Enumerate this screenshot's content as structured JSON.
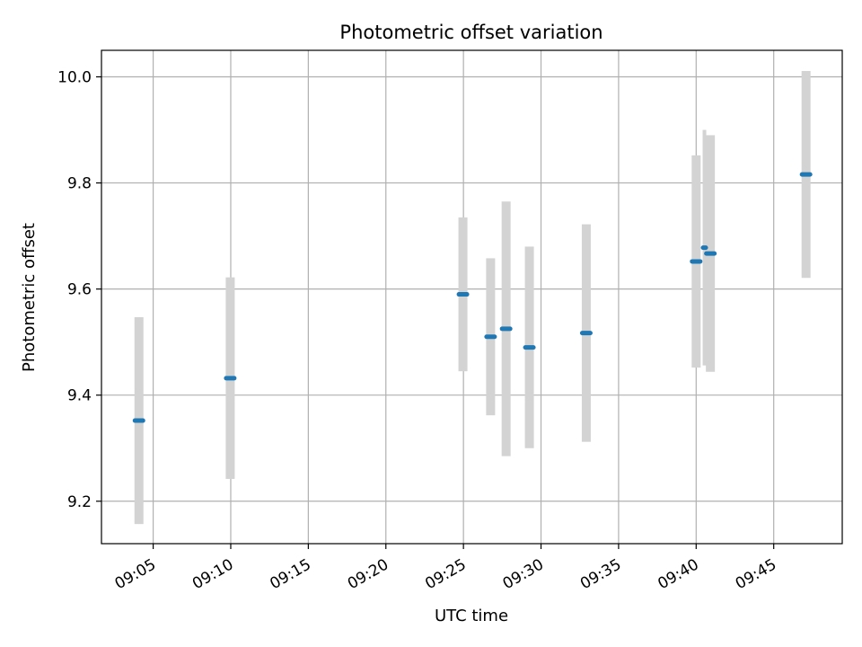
{
  "chart_data": {
    "type": "scatter",
    "title": "Photometric offset variation",
    "xlabel": "UTC time",
    "ylabel": "Photometric offset",
    "grid": true,
    "xlim": [
      "09:01:40",
      "09:49:25"
    ],
    "ylim": [
      9.12,
      10.05
    ],
    "x_ticks": [
      "09:05",
      "09:10",
      "09:15",
      "09:20",
      "09:25",
      "09:30",
      "09:35",
      "09:40",
      "09:45"
    ],
    "y_ticks": [
      9.2,
      9.4,
      9.6,
      9.8,
      10.0
    ],
    "y_tick_labels": [
      "9.2",
      "9.4",
      "9.6",
      "9.8",
      "10.0"
    ],
    "marker_color": "#1f77b4",
    "errorbar_color": "#d3d3d3",
    "points": [
      {
        "x": "09:04:05",
        "y": 9.352,
        "yerr": 0.195
      },
      {
        "x": "09:09:58",
        "y": 9.432,
        "yerr": 0.19
      },
      {
        "x": "09:24:58",
        "y": 9.59,
        "yerr": 0.145
      },
      {
        "x": "09:26:45",
        "y": 9.51,
        "yerr": 0.148
      },
      {
        "x": "09:27:45",
        "y": 9.525,
        "yerr": 0.24
      },
      {
        "x": "09:29:15",
        "y": 9.49,
        "yerr": 0.19
      },
      {
        "x": "09:32:55",
        "y": 9.517,
        "yerr": 0.205
      },
      {
        "x": "09:40:00",
        "y": 9.652,
        "yerr": 0.2
      },
      {
        "x": "09:40:32",
        "y": 9.678,
        "yerr": 0.222
      },
      {
        "x": "09:40:55",
        "y": 9.667,
        "yerr": 0.223
      },
      {
        "x": "09:47:05",
        "y": 9.816,
        "yerr": 0.195
      }
    ]
  }
}
